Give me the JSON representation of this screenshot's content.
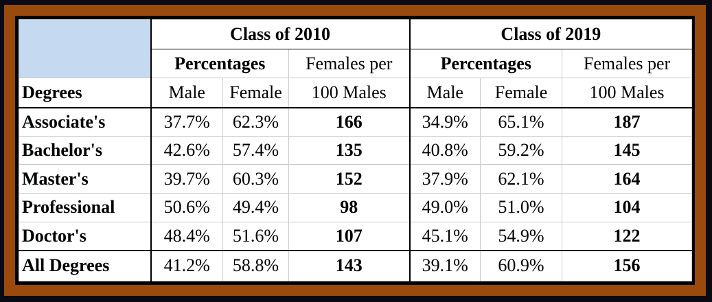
{
  "chart_data": {
    "type": "table",
    "groups": [
      "Class of 2010",
      "Class of 2019"
    ],
    "subheaders": {
      "percentages": "Percentages",
      "ratio_line1": "Females per",
      "ratio_line2": "100 Males",
      "male": "Male",
      "female": "Female"
    },
    "row_header": "Degrees",
    "rows": [
      {
        "label": "Associate's",
        "c2010": {
          "male": "37.7%",
          "female": "62.3%",
          "ratio": "166"
        },
        "c2019": {
          "male": "34.9%",
          "female": "65.1%",
          "ratio": "187"
        }
      },
      {
        "label": "Bachelor's",
        "c2010": {
          "male": "42.6%",
          "female": "57.4%",
          "ratio": "135"
        },
        "c2019": {
          "male": "40.8%",
          "female": "59.2%",
          "ratio": "145"
        }
      },
      {
        "label": "Master's",
        "c2010": {
          "male": "39.7%",
          "female": "60.3%",
          "ratio": "152"
        },
        "c2019": {
          "male": "37.9%",
          "female": "62.1%",
          "ratio": "164"
        }
      },
      {
        "label": "Professional",
        "c2010": {
          "male": "50.6%",
          "female": "49.4%",
          "ratio": "98"
        },
        "c2019": {
          "male": "49.0%",
          "female": "51.0%",
          "ratio": "104"
        }
      },
      {
        "label": "Doctor's",
        "c2010": {
          "male": "48.4%",
          "female": "51.6%",
          "ratio": "107"
        },
        "c2019": {
          "male": "45.1%",
          "female": "54.9%",
          "ratio": "122"
        }
      },
      {
        "label": "All Degrees",
        "c2010": {
          "male": "41.2%",
          "female": "58.8%",
          "ratio": "143"
        },
        "c2019": {
          "male": "39.1%",
          "female": "60.9%",
          "ratio": "156"
        }
      }
    ]
  },
  "colors": {
    "frame": "#9a4a0c",
    "corner_fill": "#c5d9f1",
    "background": "#0a0a14"
  }
}
